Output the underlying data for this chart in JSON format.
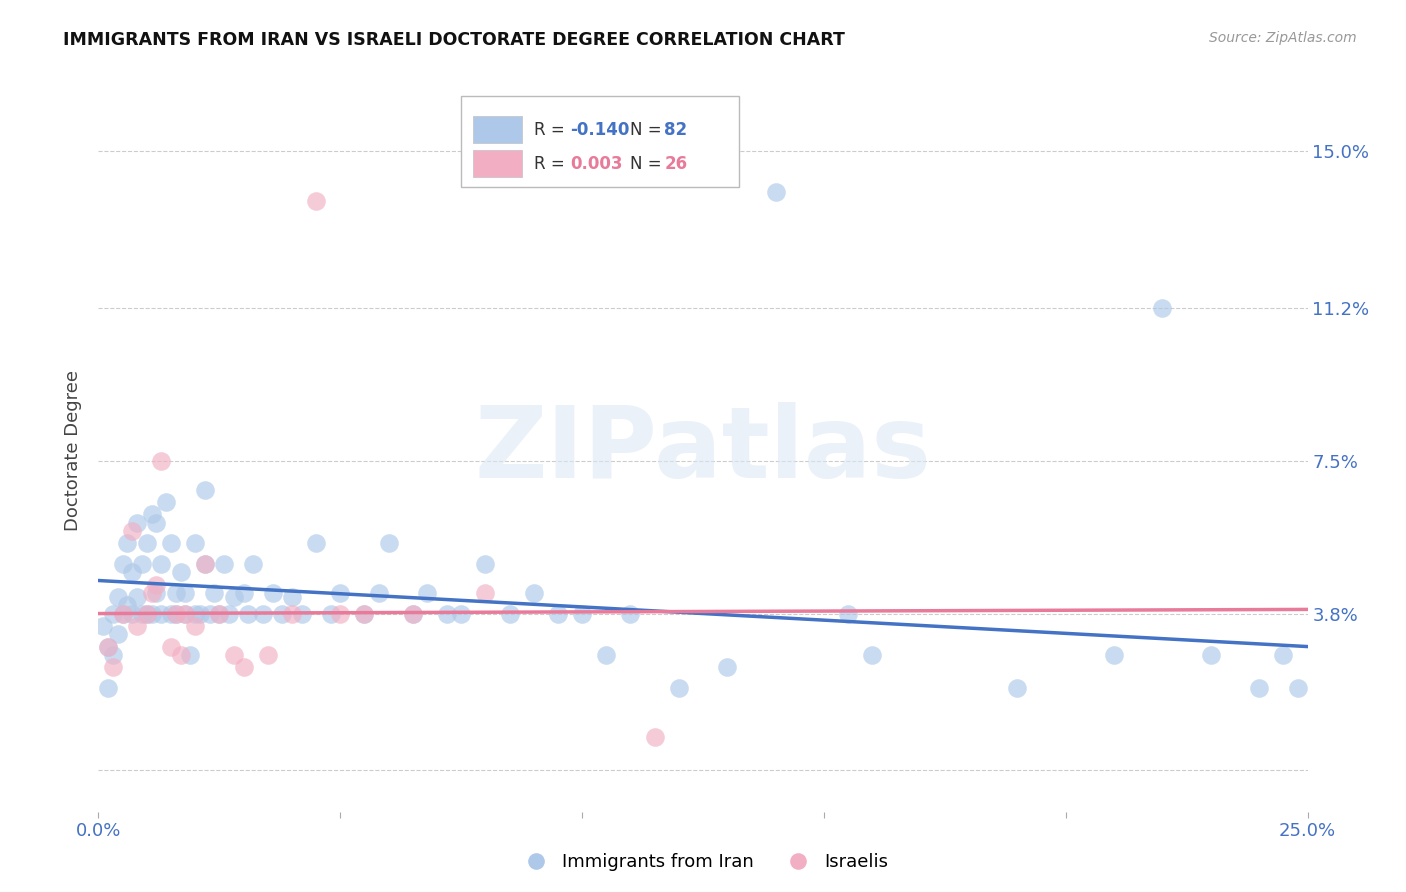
{
  "title": "IMMIGRANTS FROM IRAN VS ISRAELI DOCTORATE DEGREE CORRELATION CHART",
  "source": "Source: ZipAtlas.com",
  "ylabel": "Doctorate Degree",
  "xlim": [
    0.0,
    0.25
  ],
  "ylim": [
    -0.01,
    0.165
  ],
  "ytick_positions": [
    0.0,
    0.038,
    0.075,
    0.112,
    0.15
  ],
  "ytick_labels": [
    "",
    "3.8%",
    "7.5%",
    "11.2%",
    "15.0%"
  ],
  "xtick_positions": [
    0.0,
    0.05,
    0.1,
    0.15,
    0.2,
    0.25
  ],
  "xtick_labels": [
    "0.0%",
    "",
    "",
    "",
    "",
    "25.0%"
  ],
  "blue_R": "-0.140",
  "blue_N": "82",
  "pink_R": "0.003",
  "pink_N": "26",
  "blue_color": "#adc8e8",
  "pink_color": "#f2afc3",
  "blue_line_color": "#4472c4",
  "pink_line_color": "#e87a9a",
  "grid_color": "#cccccc",
  "background_color": "#ffffff",
  "watermark": "ZIPatlas",
  "blue_line_x0": 0.0,
  "blue_line_y0": 0.046,
  "blue_line_x1": 0.25,
  "blue_line_y1": 0.03,
  "pink_line_x0": 0.0,
  "pink_line_y0": 0.038,
  "pink_line_x1": 0.25,
  "pink_line_y1": 0.039,
  "blue_points_x": [
    0.001,
    0.002,
    0.002,
    0.003,
    0.003,
    0.004,
    0.004,
    0.005,
    0.005,
    0.006,
    0.006,
    0.007,
    0.007,
    0.008,
    0.008,
    0.009,
    0.009,
    0.01,
    0.01,
    0.011,
    0.011,
    0.012,
    0.012,
    0.013,
    0.013,
    0.014,
    0.015,
    0.015,
    0.016,
    0.016,
    0.017,
    0.018,
    0.018,
    0.019,
    0.02,
    0.02,
    0.021,
    0.022,
    0.022,
    0.023,
    0.024,
    0.025,
    0.026,
    0.027,
    0.028,
    0.03,
    0.031,
    0.032,
    0.034,
    0.036,
    0.038,
    0.04,
    0.042,
    0.045,
    0.048,
    0.05,
    0.055,
    0.058,
    0.06,
    0.065,
    0.068,
    0.072,
    0.075,
    0.08,
    0.085,
    0.09,
    0.095,
    0.1,
    0.105,
    0.11,
    0.12,
    0.13,
    0.14,
    0.155,
    0.16,
    0.19,
    0.21,
    0.22,
    0.23,
    0.24,
    0.245,
    0.248
  ],
  "blue_points_y": [
    0.035,
    0.02,
    0.03,
    0.028,
    0.038,
    0.033,
    0.042,
    0.038,
    0.05,
    0.04,
    0.055,
    0.038,
    0.048,
    0.042,
    0.06,
    0.038,
    0.05,
    0.038,
    0.055,
    0.038,
    0.062,
    0.043,
    0.06,
    0.05,
    0.038,
    0.065,
    0.038,
    0.055,
    0.038,
    0.043,
    0.048,
    0.038,
    0.043,
    0.028,
    0.038,
    0.055,
    0.038,
    0.05,
    0.068,
    0.038,
    0.043,
    0.038,
    0.05,
    0.038,
    0.042,
    0.043,
    0.038,
    0.05,
    0.038,
    0.043,
    0.038,
    0.042,
    0.038,
    0.055,
    0.038,
    0.043,
    0.038,
    0.043,
    0.055,
    0.038,
    0.043,
    0.038,
    0.038,
    0.05,
    0.038,
    0.043,
    0.038,
    0.038,
    0.028,
    0.038,
    0.02,
    0.025,
    0.14,
    0.038,
    0.028,
    0.02,
    0.028,
    0.112,
    0.028,
    0.02,
    0.028,
    0.02
  ],
  "pink_points_x": [
    0.002,
    0.003,
    0.005,
    0.007,
    0.008,
    0.01,
    0.011,
    0.012,
    0.013,
    0.015,
    0.016,
    0.017,
    0.018,
    0.02,
    0.022,
    0.025,
    0.028,
    0.03,
    0.035,
    0.04,
    0.045,
    0.05,
    0.055,
    0.065,
    0.08,
    0.115
  ],
  "pink_points_y": [
    0.03,
    0.025,
    0.038,
    0.058,
    0.035,
    0.038,
    0.043,
    0.045,
    0.075,
    0.03,
    0.038,
    0.028,
    0.038,
    0.035,
    0.05,
    0.038,
    0.028,
    0.025,
    0.028,
    0.038,
    0.138,
    0.038,
    0.038,
    0.038,
    0.043,
    0.008
  ]
}
